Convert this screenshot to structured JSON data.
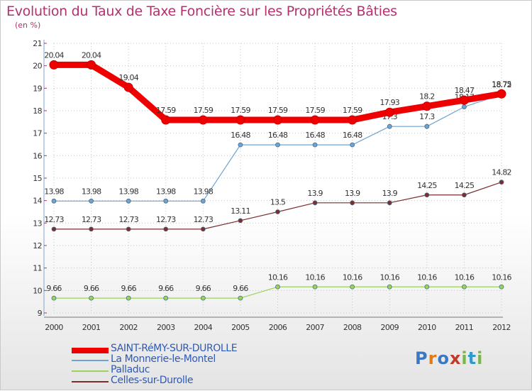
{
  "title": "Evolution du Taux de Taxe Foncière sur les Propriétés Bâties",
  "unit_label": "(en %)",
  "brand": {
    "text": "Proxiti",
    "colors": [
      "#3b78c4",
      "#e07a1a",
      "#3b78c4",
      "#c0392b",
      "#7ab648",
      "#2e9ad0",
      "#7ab648"
    ]
  },
  "chart_data": {
    "type": "line",
    "x": [
      "2000",
      "2001",
      "2002",
      "2003",
      "2004",
      "2005",
      "2006",
      "2007",
      "2008",
      "2009",
      "2010",
      "2011",
      "2012"
    ],
    "ylim": [
      9,
      21
    ],
    "yticks": [
      "9",
      "10",
      "11",
      "12",
      "13",
      "14",
      "15",
      "16",
      "17",
      "18",
      "19",
      "20",
      "21"
    ],
    "grid": "horizontal dashed",
    "legend_placement": "bottom-left",
    "series": [
      {
        "name": "SAINT-RéMY-SUR-DUROLLE",
        "color": "#ee0000",
        "values": [
          20.04,
          20.04,
          19.04,
          17.59,
          17.59,
          17.59,
          17.59,
          17.59,
          17.59,
          17.93,
          18.2,
          18.47,
          18.75
        ],
        "labels": [
          "20.04",
          "20.04",
          "19.04",
          "17.59",
          "17.59",
          "17.59",
          "17.59",
          "17.59",
          "17.59",
          "17.93",
          "18.2",
          "18.47",
          "18.75"
        ]
      },
      {
        "name": "La Monnerie-le-Montel",
        "color": "#6fa3d2",
        "values": [
          13.98,
          13.98,
          13.98,
          13.98,
          13.98,
          16.48,
          16.48,
          16.48,
          16.48,
          17.3,
          17.3,
          18.17,
          18.72
        ],
        "labels": [
          "13.98",
          "13.98",
          "13.98",
          "13.98",
          "13.98",
          "16.48",
          "16.48",
          "16.48",
          "16.48",
          "17.3",
          "17.3",
          "18.17",
          "18.72"
        ]
      },
      {
        "name": "Palladuc",
        "color": "#99d25d",
        "values": [
          9.66,
          9.66,
          9.66,
          9.66,
          9.66,
          9.66,
          10.16,
          10.16,
          10.16,
          10.16,
          10.16,
          10.16,
          10.16
        ],
        "labels": [
          "9.66",
          "9.66",
          "9.66",
          "9.66",
          "9.66",
          "9.66",
          "10.16",
          "10.16",
          "10.16",
          "10.16",
          "10.16",
          "10.16",
          "10.16"
        ]
      },
      {
        "name": "Celles-sur-Durolle",
        "color": "#7a2e2e",
        "values": [
          12.73,
          12.73,
          12.73,
          12.73,
          12.73,
          13.11,
          13.5,
          13.9,
          13.9,
          13.9,
          14.25,
          14.25,
          14.82
        ],
        "labels": [
          "12.73",
          "12.73",
          "12.73",
          "12.73",
          "12.73",
          "13.11",
          "13.5",
          "13.9",
          "13.9",
          "13.9",
          "14.25",
          "14.25",
          "14.82"
        ]
      }
    ]
  }
}
